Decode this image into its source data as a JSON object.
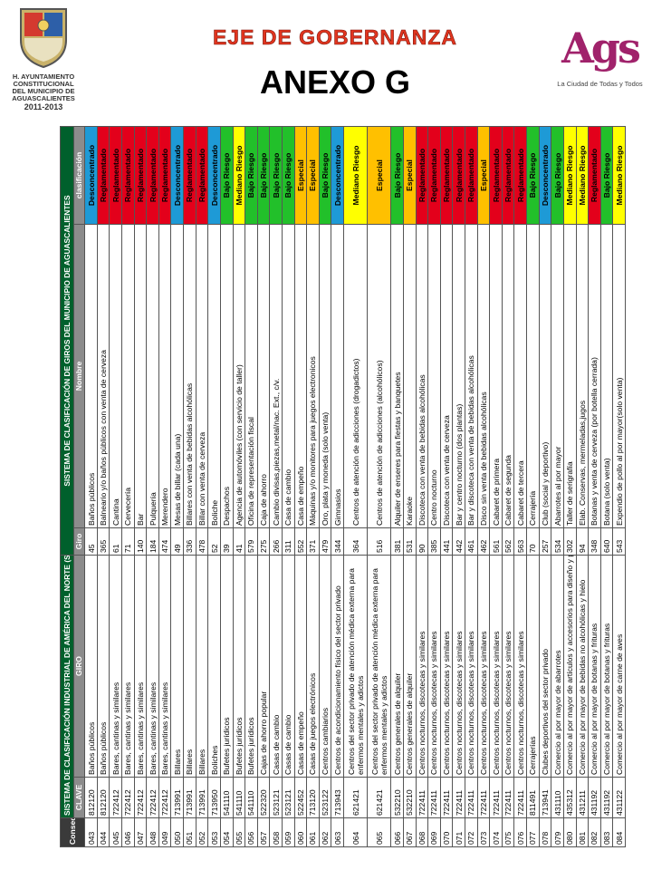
{
  "logo": {
    "lines": [
      "H. AYUNTAMIENTO",
      "CONSTITUCIONAL",
      "DEL MUNICIPIO DE",
      "AGUASCALIENTES",
      "2011-2013"
    ]
  },
  "header": {
    "title": "EJE DE GOBERNANZA",
    "subtitle": "ANEXO G"
  },
  "brand": {
    "name": "Ags",
    "tagline": "La Ciudad de Todas y Todos"
  },
  "table": {
    "group_headers": [
      "SISTEMA DE CLASIFICACIÓN INDUSTRIAL DE AMÉRICA DEL NORTE (SCIAN) 2007",
      "SISTEMA DE CLASIFICACIÓN DE GIROS DEL MUNICIPIO DE AGUASCALIENTES"
    ],
    "columns": [
      "Consec",
      "CLAVE",
      "GIRO",
      "Giro",
      "Nombre",
      "clasificación"
    ],
    "classification_colors": {
      "Desconcentrado": "#1e9ad6",
      "Reglamentado": "#e3001b",
      "Bajo Riesgo": "#22c02a",
      "Mediano Riesgo": "#ffff00",
      "Especial": "#ffc000"
    },
    "rows": [
      [
        "043",
        "812120",
        "Baños públicos",
        "45",
        "Baños públicos",
        "Desconcentrado"
      ],
      [
        "044",
        "812120",
        "Baños públicos",
        "365",
        "Balneario y/o baños públicos con venta de cerveza",
        "Reglamentado"
      ],
      [
        "045",
        "722412",
        "Bares, cantinas y similares",
        "61",
        "Cantina",
        "Reglamentado"
      ],
      [
        "046",
        "722412",
        "Bares, cantinas y similares",
        "71",
        "Cervecería",
        "Reglamentado"
      ],
      [
        "047",
        "722412",
        "Bares, cantinas y similares",
        "140",
        "Bar",
        "Reglamentado"
      ],
      [
        "048",
        "722412",
        "Bares, cantinas y similares",
        "184",
        "Pulquería",
        "Reglamentado"
      ],
      [
        "049",
        "722412",
        "Bares, cantinas y similares",
        "474",
        "Merendero",
        "Reglamentado"
      ],
      [
        "050",
        "713991",
        "Billares",
        "49",
        "Mesas de billar (cada una)",
        "Desconcentrado"
      ],
      [
        "051",
        "713991",
        "Billares",
        "336",
        "Billares con venta de bebidas alcohólicas",
        "Reglamentado"
      ],
      [
        "052",
        "713991",
        "Billares",
        "478",
        "Billar con venta de cerveza",
        "Reglamentado"
      ],
      [
        "053",
        "713950",
        "Boliches",
        "52",
        "Boliche",
        "Desconcentrado"
      ],
      [
        "054",
        "541110",
        "Bufetes jurídicos",
        "39",
        "Despachos",
        "Bajo Riesgo"
      ],
      [
        "055",
        "541110",
        "Bufetes jurídicos",
        "41",
        "Agencia de automóviles (con servicio de taller)",
        "Mediano Riesgo"
      ],
      [
        "056",
        "541110",
        "Bufetes jurídicos",
        "579",
        "Oficina de representación fiscal",
        "Bajo Riesgo"
      ],
      [
        "057",
        "522320",
        "Cajas de ahorro popular",
        "275",
        "Caja de ahorro",
        "Bajo Riesgo"
      ],
      [
        "058",
        "523121",
        "Casas de cambio",
        "266",
        "Cambio divisas,piezas,metal/nac. Ext., c/v.",
        "Bajo Riesgo"
      ],
      [
        "059",
        "523121",
        "Casas de cambio",
        "311",
        "Casa de cambio",
        "Bajo Riesgo"
      ],
      [
        "060",
        "522452",
        "Casas de empeño",
        "552",
        "Casa de empeño",
        "Especial"
      ],
      [
        "061",
        "713120",
        "Casas de juegos electrónicos",
        "371",
        "Máquinas y/o monitores para juegos electronicos",
        "Especial"
      ],
      [
        "062",
        "523122",
        "Centros cambiarios",
        "479",
        "Oro, plata y moneda (solo venta)",
        "Bajo Riesgo"
      ],
      [
        "063",
        "713943",
        "Centros de acondicionamiento físico del sector privado",
        "344",
        "Gimnasios",
        "Desconcentrado"
      ],
      [
        "064",
        "621421",
        "Centros del sector privado de atención médica externa para enfermos mentales y adictos",
        "364",
        "Centros de atención de adicciones (drogadictos)",
        "Mediano Riesgo"
      ],
      [
        "065",
        "621421",
        "Centros del sector privado de atención médica externa para enfermos mentales y adictos",
        "516",
        "Centros de atención de adicciones (alcohólicos)",
        "Especial"
      ],
      [
        "066",
        "532210",
        "Centros generales de alquiler",
        "381",
        "Alquiler de enseres para fiestas y banquetes",
        "Bajo Riesgo"
      ],
      [
        "067",
        "532210",
        "Centros generales de alquiler",
        "531",
        "Karaoke",
        "Especial"
      ],
      [
        "068",
        "722411",
        "Centros nocturnos, discotecas y similares",
        "90",
        "Discoteca con venta de bebidas alcohólicas",
        "Reglamentado"
      ],
      [
        "069",
        "722411",
        "Centros nocturnos, discotecas y similares",
        "385",
        "Centro nocturno",
        "Reglamentado"
      ],
      [
        "070",
        "722411",
        "Centros nocturnos, discotecas y similares",
        "441",
        "Discoteca con venta de cerveza",
        "Reglamentado"
      ],
      [
        "071",
        "722411",
        "Centros nocturnos, discotecas y similares",
        "442",
        "Bar y centro nocturno (dos plantas)",
        "Reglamentado"
      ],
      [
        "072",
        "722411",
        "Centros nocturnos, discotecas y similares",
        "461",
        "Bar y discoteca con venta de bebidas alcohólicas",
        "Reglamentado"
      ],
      [
        "073",
        "722411",
        "Centros nocturnos, discotecas y similares",
        "462",
        "Disco sin venta de bebidas alcohólicas",
        "Especial"
      ],
      [
        "074",
        "722411",
        "Centros nocturnos, discotecas y similares",
        "561",
        "Cabaret de primera",
        "Reglamentado"
      ],
      [
        "075",
        "722411",
        "Centros nocturnos, discotecas y similares",
        "562",
        "Cabaret de segunda",
        "Reglamentado"
      ],
      [
        "076",
        "722411",
        "Centros nocturnos, discotecas y similares",
        "563",
        "Cabaret de tercera",
        "Reglamentado"
      ],
      [
        "077",
        "811491",
        "Cerrajerías",
        "70",
        "Cerrajería",
        "Bajo Riesgo"
      ],
      [
        "078",
        "713941",
        "Clubes deportivos del sector privado",
        "257",
        "Club (social y deportivo)",
        "Desconcentrado"
      ],
      [
        "079",
        "431110",
        "Comercio al por mayor de abarrotes",
        "534",
        "Abarrotes al por mayor",
        "Bajo Riesgo"
      ],
      [
        "080",
        "435312",
        "Comercio al por mayor de artículos y accesorios para diseño y pintura artística",
        "302",
        "Taller de serigrafía",
        "Mediano Riesgo"
      ],
      [
        "081",
        "431211",
        "Comercio al por mayor de bebidas no alcohólicas y hielo",
        "94",
        "Elab. Conservas, mermeladas,jugos",
        "Mediano Riesgo"
      ],
      [
        "082",
        "431192",
        "Comercio al por mayor de botanas y frituras",
        "348",
        "Botanas y venta de cerveza (por botella cerrada)",
        "Reglamentado"
      ],
      [
        "083",
        "431192",
        "Comercio al por mayor de botanas y frituras",
        "640",
        "Botana (solo venta)",
        "Bajo Riesgo"
      ],
      [
        "084",
        "431122",
        "Comercio al por mayor de carne de aves",
        "543",
        "Expendio de pollo al por mayor(solo venta)",
        "Mediano Riesgo"
      ]
    ]
  }
}
